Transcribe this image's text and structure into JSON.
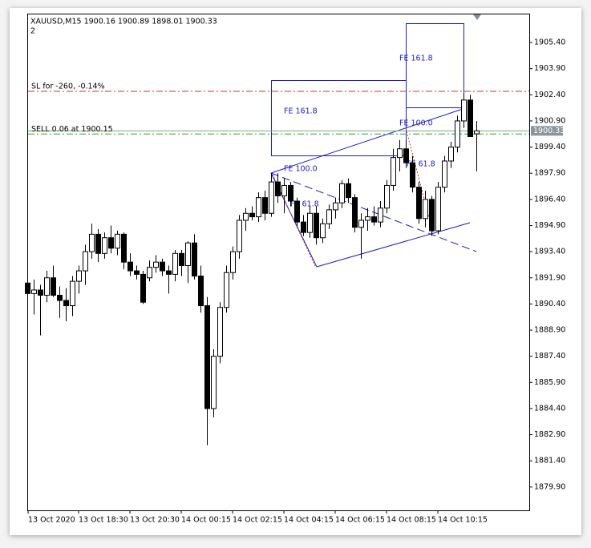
{
  "chart_data": {
    "type": "candlestick",
    "title": "XAUUSD,M15  1900.16 1900.89 1898.01 1900.33",
    "subtitle": "2",
    "categories": [
      "13 Oct 2020",
      null,
      null,
      null,
      null,
      null,
      null,
      null,
      "13 Oct 18:30",
      null,
      null,
      null,
      null,
      null,
      null,
      null,
      "13 Oct 20:30",
      null,
      null,
      null,
      null,
      null,
      null,
      null,
      "14 Oct 00:15",
      null,
      null,
      null,
      null,
      null,
      null,
      null,
      "14 Oct 02:15",
      null,
      null,
      null,
      null,
      null,
      null,
      null,
      "14 Oct 04:15",
      null,
      null,
      null,
      null,
      null,
      null,
      null,
      "14 Oct 06:15",
      null,
      null,
      null,
      null,
      null,
      null,
      null,
      "14 Oct 08:15",
      null,
      null,
      null,
      null,
      null,
      null,
      null,
      "14 Oct 10:15",
      null,
      null,
      null,
      null,
      null,
      null
    ],
    "open": [
      1891.6,
      1891.0,
      1891.2,
      1890.9,
      1891.9,
      1890.9,
      1890.6,
      1890.3,
      1891.7,
      1892.3,
      1893.4,
      1894.4,
      1893.3,
      1894.2,
      1893.6,
      1894.4,
      1892.8,
      1892.3,
      1892.1,
      1891.9,
      1892.5,
      1892.8,
      1892.3,
      1892.1,
      1893.3,
      1892.6,
      1893.9,
      1892.0,
      1890.3,
      1884.4,
      1887.4,
      1890.2,
      1892.2,
      1893.4,
      1895.2,
      1895.6,
      1895.4,
      1896.5,
      1895.6,
      1897.4,
      1896.6,
      1897.2,
      1896.3,
      1895.1,
      1894.5,
      1895.6,
      1894.2,
      1895.0,
      1895.8,
      1896.2,
      1897.3,
      1896.5,
      1894.8,
      1895.2,
      1895.4,
      1895.1,
      1895.9,
      1897.2,
      1898.8,
      1899.3,
      1898.5,
      1897.1,
      1895.3,
      1896.4,
      1894.6,
      1897.1,
      1898.6,
      1899.4,
      1900.9,
      1902.1,
      1900.16
    ],
    "high": [
      1892.9,
      1891.8,
      1891.5,
      1892.3,
      1892.6,
      1891.4,
      1891.3,
      1892.0,
      1892.6,
      1893.8,
      1895.0,
      1894.7,
      1894.5,
      1894.9,
      1894.6,
      1894.5,
      1893.3,
      1892.6,
      1892.3,
      1892.9,
      1893.2,
      1893.0,
      1892.6,
      1893.5,
      1893.5,
      1894.0,
      1894.4,
      1892.6,
      1890.8,
      1887.8,
      1890.5,
      1892.6,
      1893.7,
      1895.5,
      1895.9,
      1896.0,
      1896.8,
      1896.9,
      1897.9,
      1897.9,
      1897.6,
      1897.4,
      1896.5,
      1895.5,
      1896.0,
      1896.0,
      1895.3,
      1896.1,
      1896.5,
      1897.5,
      1897.6,
      1896.7,
      1895.6,
      1895.9,
      1896.0,
      1896.3,
      1897.5,
      1899.3,
      1899.8,
      1899.8,
      1898.9,
      1897.4,
      1896.9,
      1896.6,
      1897.4,
      1898.9,
      1899.7,
      1901.2,
      1902.5,
      1902.4,
      1900.89
    ],
    "low": [
      1890.6,
      1889.8,
      1888.6,
      1890.5,
      1890.8,
      1889.6,
      1889.4,
      1889.7,
      1891.0,
      1891.5,
      1893.0,
      1892.8,
      1893.0,
      1893.3,
      1893.2,
      1892.4,
      1892.0,
      1891.8,
      1890.4,
      1891.7,
      1892.2,
      1892.0,
      1891.0,
      1891.7,
      1892.0,
      1891.6,
      1891.8,
      1889.9,
      1882.3,
      1883.9,
      1887.0,
      1889.9,
      1891.8,
      1893.0,
      1894.6,
      1895.2,
      1895.1,
      1895.2,
      1895.4,
      1896.2,
      1895.6,
      1896.0,
      1894.8,
      1894.3,
      1894.2,
      1893.8,
      1893.9,
      1894.7,
      1895.3,
      1895.9,
      1896.2,
      1894.5,
      1893.0,
      1894.6,
      1894.9,
      1894.8,
      1895.6,
      1896.9,
      1898.0,
      1898.2,
      1896.8,
      1895.0,
      1894.8,
      1894.3,
      1894.4,
      1896.8,
      1898.2,
      1899.1,
      1900.5,
      1900.0,
      1898.01
    ],
    "close": [
      1891.0,
      1891.2,
      1890.9,
      1891.9,
      1890.9,
      1890.6,
      1890.3,
      1891.7,
      1892.3,
      1893.4,
      1894.4,
      1893.3,
      1894.2,
      1893.6,
      1894.4,
      1892.8,
      1892.3,
      1892.1,
      1890.5,
      1892.5,
      1892.8,
      1892.3,
      1892.1,
      1893.3,
      1892.6,
      1893.9,
      1892.0,
      1890.3,
      1884.4,
      1887.4,
      1890.2,
      1892.2,
      1893.4,
      1895.2,
      1895.6,
      1895.4,
      1896.5,
      1895.6,
      1897.4,
      1896.6,
      1897.2,
      1896.3,
      1895.1,
      1894.5,
      1895.6,
      1894.2,
      1895.0,
      1895.8,
      1896.2,
      1897.3,
      1896.5,
      1894.8,
      1895.2,
      1895.4,
      1895.1,
      1895.9,
      1897.2,
      1898.8,
      1899.3,
      1898.5,
      1897.1,
      1895.3,
      1896.4,
      1894.6,
      1897.1,
      1898.6,
      1899.4,
      1900.9,
      1902.1,
      1900.0,
      1900.33
    ],
    "ylim": [
      1878.56,
      1907.01
    ],
    "yticks": [
      {
        "value": 1879.9,
        "label": "1879.90"
      },
      {
        "value": 1881.4,
        "label": "1881.40"
      },
      {
        "value": 1882.9,
        "label": "1882.90"
      },
      {
        "value": 1884.4,
        "label": "1884.40"
      },
      {
        "value": 1885.9,
        "label": "1885.90"
      },
      {
        "value": 1887.4,
        "label": "1887.40"
      },
      {
        "value": 1888.9,
        "label": "1888.90"
      },
      {
        "value": 1890.4,
        "label": "1890.40"
      },
      {
        "value": 1891.9,
        "label": "1891.90"
      },
      {
        "value": 1893.4,
        "label": "1893.40"
      },
      {
        "value": 1894.9,
        "label": "1894.90"
      },
      {
        "value": 1896.4,
        "label": "1896.40"
      },
      {
        "value": 1897.9,
        "label": "1897.90"
      },
      {
        "value": 1899.4,
        "label": "1899.40"
      },
      {
        "value": 1900.9,
        "label": "1900.90"
      },
      {
        "value": 1902.4,
        "label": "1902.40"
      },
      {
        "value": 1903.9,
        "label": "1903.90"
      },
      {
        "value": 1905.4,
        "label": "1905.40"
      }
    ],
    "levels": [
      {
        "name": "SL for -260, -0.14%",
        "value": 1902.6,
        "color": "#c0392b"
      },
      {
        "name": "SELL 0.06 at 1900.15",
        "value": 1900.15,
        "color": "#2ca02c"
      }
    ],
    "current_price": {
      "value": 1900.33,
      "label": "1900.33"
    },
    "annotations": [
      "FE 161.8",
      "FE 161.8",
      "FE 100.0",
      "FE 100.0",
      "FE 61.8",
      "FE 61.8"
    ],
    "grid": false
  }
}
